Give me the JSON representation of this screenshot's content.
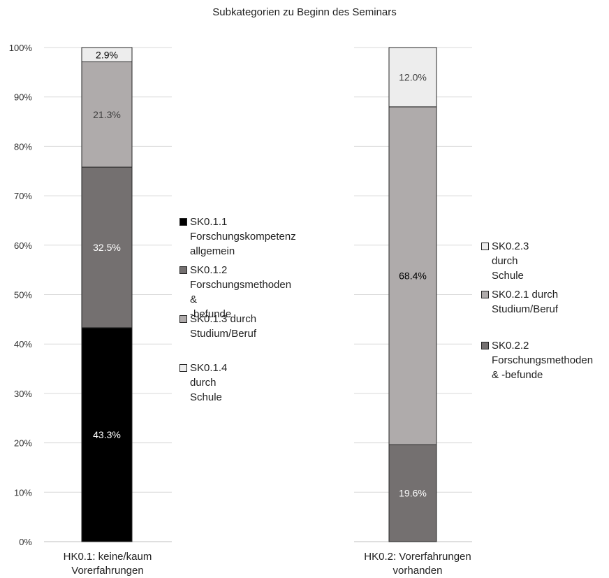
{
  "chart_data": {
    "type": "bar",
    "stacked": true,
    "title": "Subkategorien zu Beginn des Seminars",
    "ylim": [
      0,
      100
    ],
    "yticks": [
      "0%",
      "10%",
      "20%",
      "30%",
      "40%",
      "50%",
      "60%",
      "70%",
      "80%",
      "90%",
      "100%"
    ],
    "grid": true,
    "bars": [
      {
        "category": "HK0.1: keine/kaum\nVorerfahrungen",
        "segments": [
          {
            "name": "SK0.1.1 Forschungskompetenz allgemein",
            "legend": "SK0.1.1\nForschungskompetenz\nallgemein",
            "value": 43.3,
            "label": "43.3%",
            "color": "#000000",
            "text_color": "#ffffff"
          },
          {
            "name": "SK0.1.2 Forschungsmethoden & -befunde",
            "legend": "SK0.1.2\nForschungsmethoden &\n-befunde",
            "value": 32.5,
            "label": "32.5%",
            "color": "#747070",
            "text_color": "#ffffff"
          },
          {
            "name": "SK0.1.3 durch Studium/Beruf",
            "legend": "SK0.1.3 durch\nStudium/Beruf",
            "value": 21.3,
            "label": "21.3%",
            "color": "#afabab",
            "text_color": "#404040"
          },
          {
            "name": "SK0.1.4 durch Schule",
            "legend": "SK0.1.4 durch Schule",
            "value": 2.9,
            "label": "2.9%",
            "color": "#ededed",
            "text_color": "#000000"
          }
        ]
      },
      {
        "category": "HK0.2: Vorerfahrungen\nvorhanden",
        "segments": [
          {
            "name": "SK0.2.2 Forschungsmethoden & -befunde",
            "legend": "SK0.2.2\nForschungsmethoden\n& -befunde",
            "value": 19.6,
            "label": "19.6%",
            "color": "#747070",
            "text_color": "#ffffff"
          },
          {
            "name": "SK0.2.1 durch Studium/Beruf",
            "legend": "SK0.2.1 durch\nStudium/Beruf",
            "value": 68.4,
            "label": "68.4%",
            "color": "#afabab",
            "text_color": "#000000"
          },
          {
            "name": "SK0.2.3 durch Schule",
            "legend": "SK0.2.3 durch Schule",
            "value": 12.0,
            "label": "12.0%",
            "color": "#ededed",
            "text_color": "#404040"
          }
        ]
      }
    ]
  }
}
